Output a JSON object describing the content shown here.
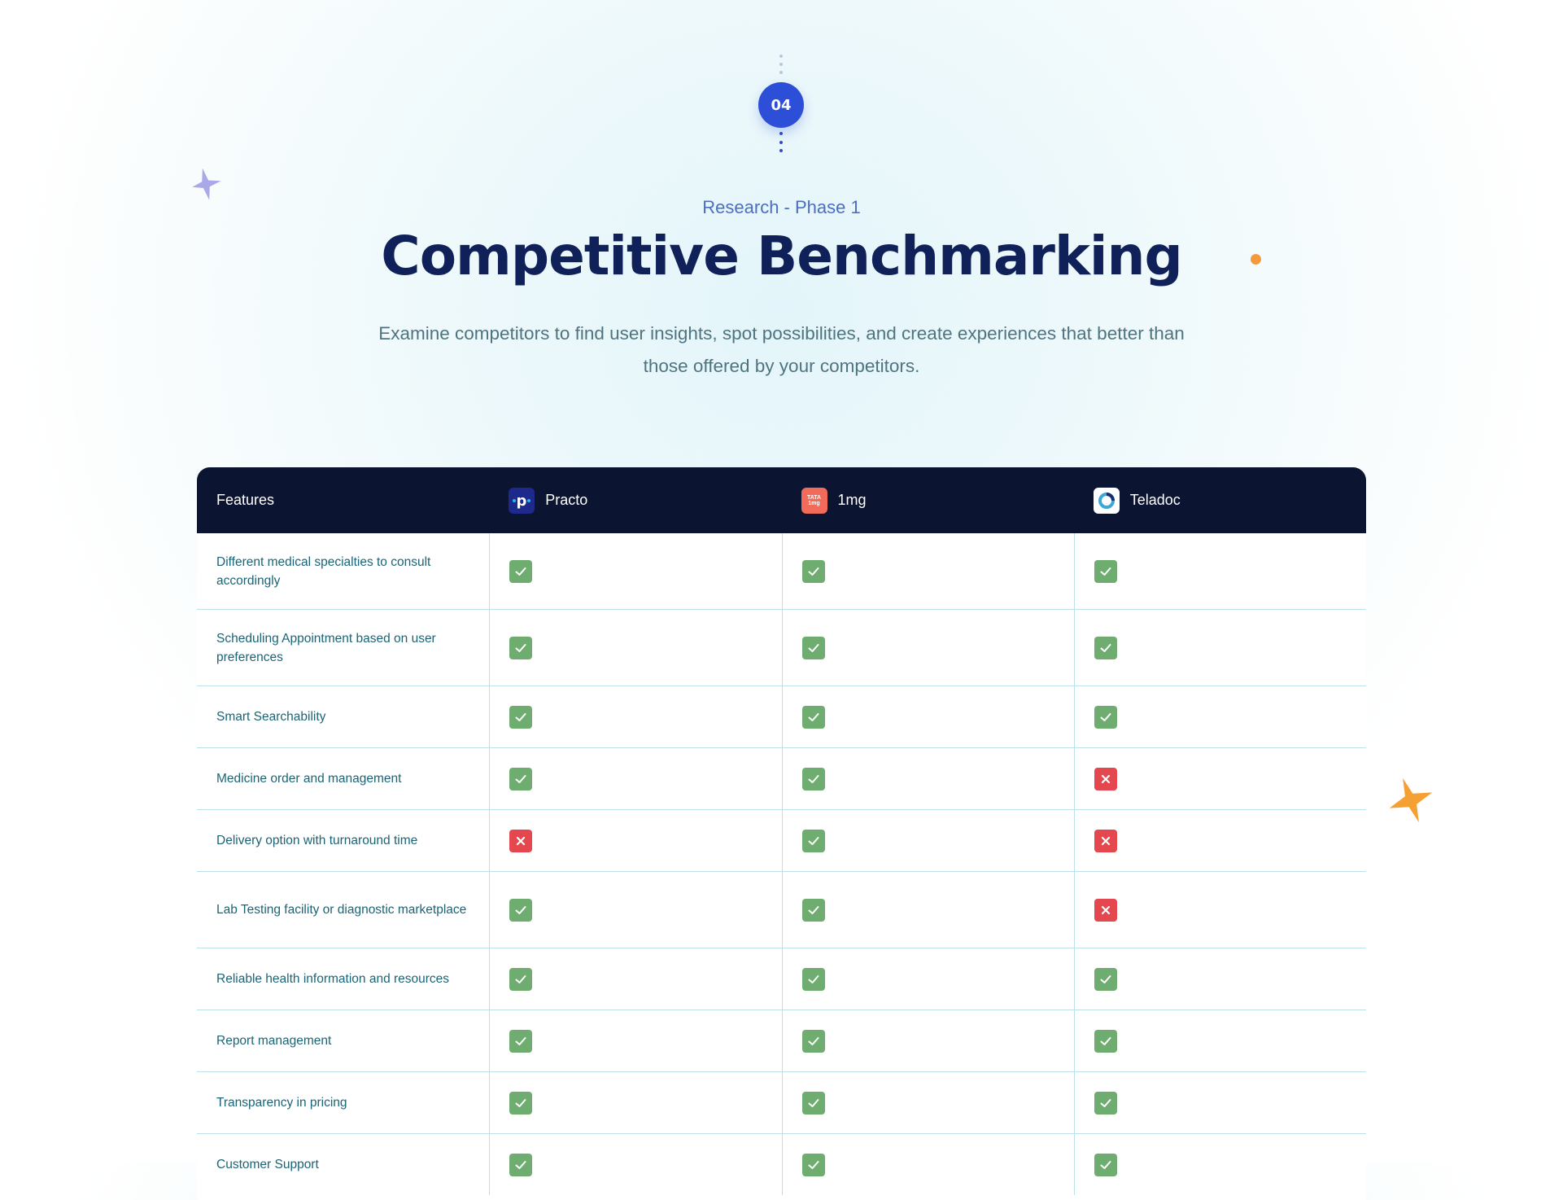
{
  "step": {
    "number": "04"
  },
  "header": {
    "eyebrow": "Research - Phase 1",
    "title": "Competitive Benchmarking",
    "subtitle": "Examine competitors to find user insights, spot possibilities, and create experiences that better than those offered by your competitors."
  },
  "colors": {
    "accent": "#2d4fd7",
    "title": "#0f2158",
    "table_header_bg": "#0b1430",
    "check_yes": "#6ead6f",
    "check_no": "#e5474e",
    "sparkle_orange": "#f5a033",
    "sparkle_purple": "#a9a8e8"
  },
  "table": {
    "columns": [
      {
        "label": "Features",
        "logo": null
      },
      {
        "label": "Practo",
        "logo": "practo-logo-icon"
      },
      {
        "label": "1mg",
        "logo": "tata-1mg-logo-icon"
      },
      {
        "label": "Teladoc",
        "logo": "teladoc-logo-icon"
      }
    ],
    "rows": [
      {
        "feature": "Different medical specialties to consult accordingly",
        "values": [
          true,
          true,
          true
        ]
      },
      {
        "feature": "Scheduling Appointment based on user preferences",
        "values": [
          true,
          true,
          true
        ]
      },
      {
        "feature": "Smart Searchability",
        "values": [
          true,
          true,
          true
        ]
      },
      {
        "feature": "Medicine order and management",
        "values": [
          true,
          true,
          false
        ]
      },
      {
        "feature": "Delivery option with turnaround time",
        "values": [
          false,
          true,
          false
        ]
      },
      {
        "feature": "Lab Testing facility or diagnostic marketplace",
        "values": [
          true,
          true,
          false
        ]
      },
      {
        "feature": "Reliable health information and resources",
        "values": [
          true,
          true,
          true
        ]
      },
      {
        "feature": "Report management",
        "values": [
          true,
          true,
          true
        ]
      },
      {
        "feature": "Transparency in pricing",
        "values": [
          true,
          true,
          true
        ]
      },
      {
        "feature": "Customer Support",
        "values": [
          true,
          true,
          true
        ]
      }
    ]
  },
  "logos": {
    "onemg_text_top": "TATA",
    "onemg_text_bottom": "1mg"
  }
}
